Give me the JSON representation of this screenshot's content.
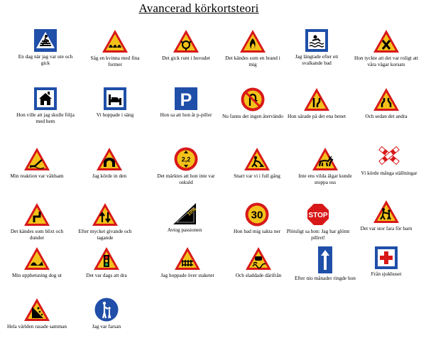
{
  "title": "Avancerad körkortsteori",
  "signs": [
    {
      "icon": "pedestrian-crossing-sign-icon",
      "caption": "En dag när jag var ute och gick"
    },
    {
      "icon": "speed-bumps-sign-icon",
      "caption": "Såg en kvinna med fina former"
    },
    {
      "icon": "roundabout-sign-icon",
      "caption": "Det gick runt i huvudet"
    },
    {
      "icon": "fire-hazard-sign-icon",
      "caption": "Det kändes som en brand i mig"
    },
    {
      "icon": "bathing-place-sign-icon",
      "caption": "Jag längtade efter ett svalkande bad"
    },
    {
      "icon": "crossroads-sign-icon",
      "caption": "Hon tyckte att det var roligt att våra vägar korsats"
    },
    {
      "icon": "hostel-sign-icon",
      "caption": "Hon ville att jag skulle följa med hem"
    },
    {
      "icon": "bed-sign-icon",
      "caption": "Vi hoppade i säng"
    },
    {
      "icon": "parking-sign-icon",
      "caption": "Hon sa att hon åt p-piller"
    },
    {
      "icon": "no-u-turn-sign-icon",
      "caption": "Nu fanns det ingen återvändo"
    },
    {
      "icon": "road-narrows-sign-icon",
      "caption": "Hon särade på det ena benet"
    },
    {
      "icon": "road-narrows-both-sign-icon",
      "caption": "Och sedan det andra"
    },
    {
      "icon": "opening-bridge-sign-icon",
      "caption": "Min reaktion var våldsam"
    },
    {
      "icon": "tunnel-sign-icon",
      "caption": "Jag körde in den"
    },
    {
      "icon": "height-limit-sign-icon",
      "caption": "Det märktes att hon inte var oskuld",
      "value": "2,2"
    },
    {
      "icon": "roadworks-sign-icon",
      "caption": "Snart var vi i full gång"
    },
    {
      "icon": "elk-sign-icon",
      "caption": "Inte ens vilda älgar kunde stoppa oss"
    },
    {
      "icon": "level-crossing-sign-icon",
      "caption": "Vi körde många ställningar"
    },
    {
      "icon": "double-bend-sign-icon",
      "caption": "Det kändes som blixt och dunder"
    },
    {
      "icon": "two-way-traffic-sign-icon",
      "caption": "Efter mycket givande och tagande"
    },
    {
      "icon": "steep-hill-sign-icon",
      "caption": "Avtog passionen",
      "value": "10%"
    },
    {
      "icon": "speed-limit-sign-icon",
      "caption": "Hon bad mig sakta ner",
      "value": "30"
    },
    {
      "icon": "stop-sign-icon",
      "caption": "Plötsligt sa hon: Jag har glömt pillret!",
      "value": "STOP"
    },
    {
      "icon": "children-crossing-sign-icon",
      "caption": "Det var stor fara för barn"
    },
    {
      "icon": "uneven-road-sign-icon",
      "caption": "Min upphetsning dog ut"
    },
    {
      "icon": "traffic-lights-sign-icon",
      "caption": "Det var dags att dra"
    },
    {
      "icon": "cattle-grid-sign-icon",
      "caption": "Jag hoppade över staketet"
    },
    {
      "icon": "slippery-road-sign-icon",
      "caption": "Och sladdade därifrån"
    },
    {
      "icon": "one-way-sign-icon",
      "caption": "Efter nio månader ringde hon"
    },
    {
      "icon": "hospital-sign-icon",
      "caption": "Från sjukhuset"
    },
    {
      "icon": "falling-rocks-sign-icon",
      "caption": "Hela världen rasade samman"
    },
    {
      "icon": "parent-and-child-sign-icon",
      "caption": "Jag var farsan"
    }
  ]
}
